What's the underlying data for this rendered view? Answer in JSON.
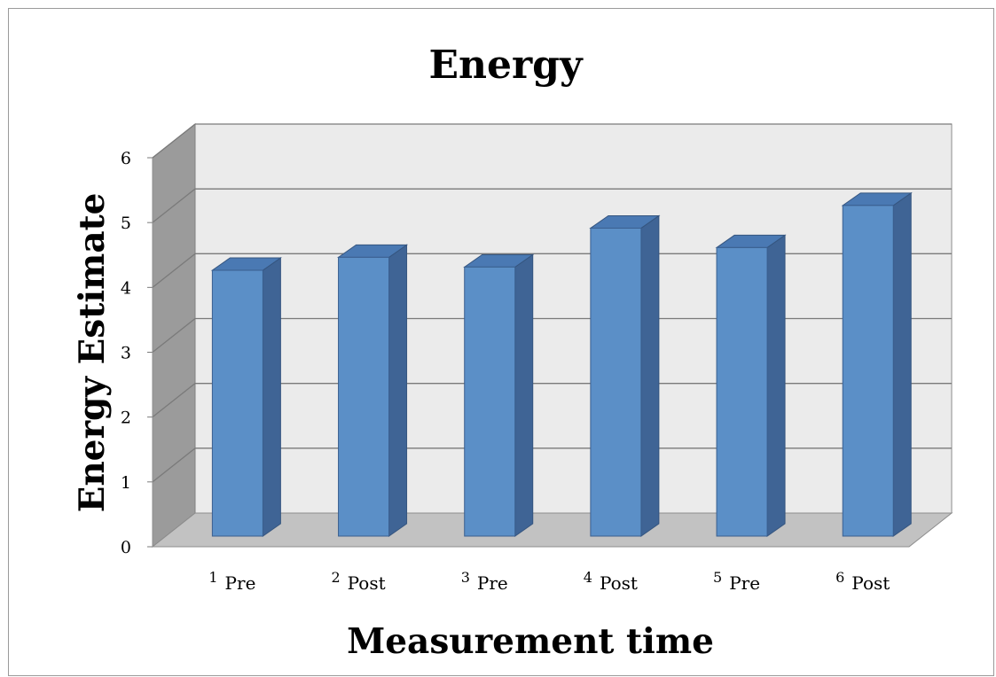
{
  "chart_data": {
    "type": "bar",
    "title": "Energy",
    "xlabel": "Measurement time",
    "ylabel": "Energy Estimate",
    "categories": [
      {
        "num": "1",
        "text": "Pre"
      },
      {
        "num": "2",
        "text": "Post"
      },
      {
        "num": "3",
        "text": "Pre"
      },
      {
        "num": "4",
        "text": "Post"
      },
      {
        "num": "5",
        "text": "Pre"
      },
      {
        "num": "6",
        "text": "Post"
      }
    ],
    "values": [
      4.1,
      4.3,
      4.15,
      4.75,
      4.45,
      5.1
    ],
    "yticks": [
      "0",
      "1",
      "2",
      "3",
      "4",
      "5",
      "6"
    ],
    "ylim": [
      0,
      6
    ],
    "grid": true,
    "legend": "none",
    "bar_color": "#5b8fc7",
    "bar_side_color": "#3f6495",
    "bar_top_color": "#4a79b3"
  }
}
